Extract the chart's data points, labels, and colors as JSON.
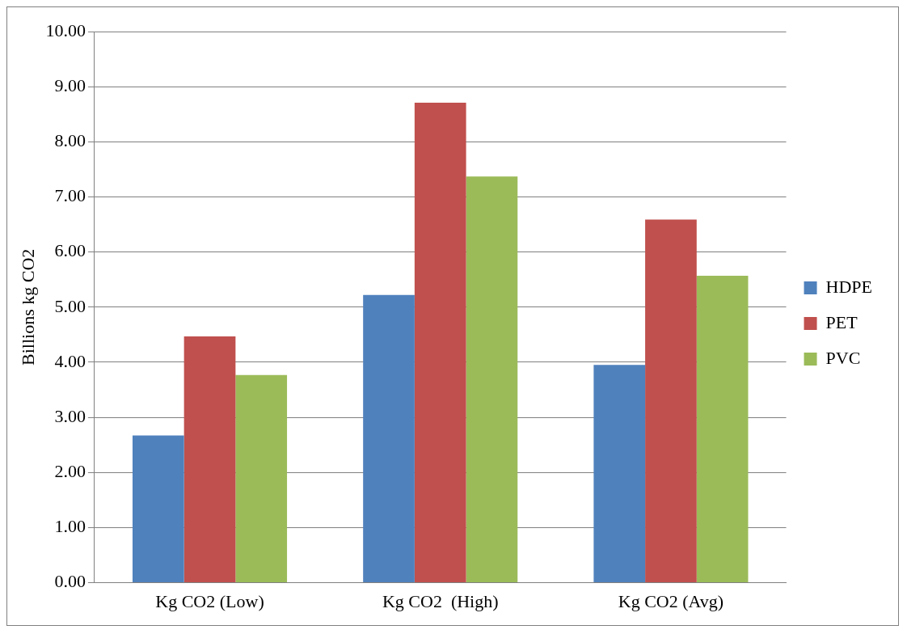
{
  "chart_data": {
    "type": "bar",
    "ylabel": "Billions kg CO2",
    "categories": [
      "Kg CO2 (Low)",
      "Kg CO2  (High)",
      "Kg CO2 (Avg)"
    ],
    "series": [
      {
        "name": "HDPE",
        "color": "#4f81bd",
        "values": [
          2.67,
          5.22,
          3.95
        ]
      },
      {
        "name": "PET",
        "color": "#c0504d",
        "values": [
          4.47,
          8.71,
          6.59
        ]
      },
      {
        "name": "PVC",
        "color": "#9bbb59",
        "values": [
          3.77,
          7.37,
          5.57
        ]
      }
    ],
    "ylim": [
      0,
      10
    ],
    "yticks": [
      {
        "value": 0,
        "label": "0.00"
      },
      {
        "value": 1,
        "label": "1.00"
      },
      {
        "value": 2,
        "label": "2.00"
      },
      {
        "value": 3,
        "label": "3.00"
      },
      {
        "value": 4,
        "label": "4.00"
      },
      {
        "value": 5,
        "label": "5.00"
      },
      {
        "value": 6,
        "label": "6.00"
      },
      {
        "value": 7,
        "label": "7.00"
      },
      {
        "value": 8,
        "label": "8.00"
      },
      {
        "value": 9,
        "label": "9.00"
      },
      {
        "value": 10,
        "label": "10.00"
      }
    ],
    "grid": "y",
    "legend": "right"
  }
}
